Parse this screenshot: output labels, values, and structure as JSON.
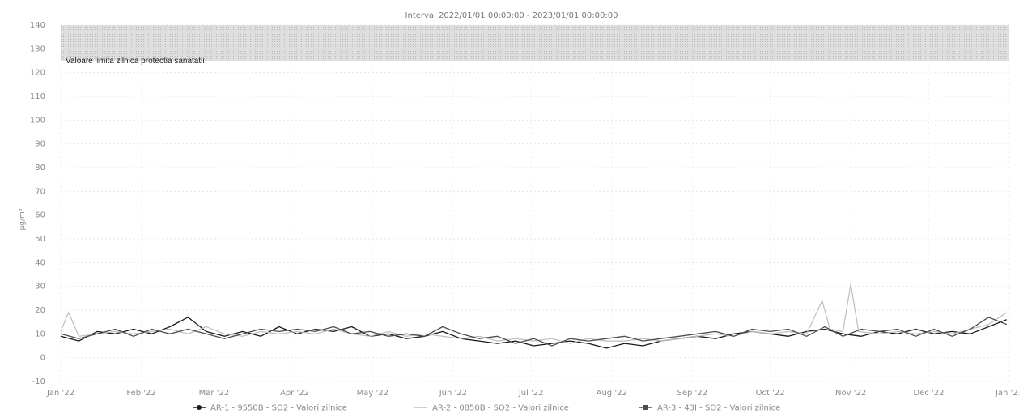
{
  "chart_data": {
    "type": "line",
    "title": "Interval 2022/01/01 00:00:00 - 2023/01/01 00:00:00",
    "ylabel": "µg/m³",
    "ylim": [
      -10,
      140
    ],
    "yticks": [
      -10,
      0,
      10,
      20,
      30,
      40,
      50,
      60,
      70,
      80,
      90,
      100,
      110,
      120,
      130,
      140
    ],
    "xlim": [
      "2022-01-01",
      "2023-01-01"
    ],
    "xticks": [
      {
        "label": "Jan '22",
        "date": "2022-01-01"
      },
      {
        "label": "Feb '22",
        "date": "2022-02-01"
      },
      {
        "label": "Mar '22",
        "date": "2022-03-01"
      },
      {
        "label": "Apr '22",
        "date": "2022-04-01"
      },
      {
        "label": "May '22",
        "date": "2022-05-01"
      },
      {
        "label": "Jun '22",
        "date": "2022-06-01"
      },
      {
        "label": "Jul '22",
        "date": "2022-07-01"
      },
      {
        "label": "Aug '22",
        "date": "2022-08-01"
      },
      {
        "label": "Sep '22",
        "date": "2022-09-01"
      },
      {
        "label": "Oct '22",
        "date": "2022-10-01"
      },
      {
        "label": "Nov '22",
        "date": "2022-11-01"
      },
      {
        "label": "Dec '22",
        "date": "2022-12-01"
      },
      {
        "label": "Jan '23",
        "date": "2023-01-01"
      }
    ],
    "grid": true,
    "legend_position": "bottom",
    "threshold_band": {
      "label": "Valoare limita zilnica protectia sanatatii",
      "from": 125,
      "to": 140
    },
    "series": [
      {
        "name": "AR-1 - 9550B - SO2 - Valori zilnice",
        "color": "#1a1a1a",
        "marker": "circle",
        "points": [
          [
            "2022-01-01",
            9
          ],
          [
            "2022-01-08",
            7
          ],
          [
            "2022-01-15",
            11
          ],
          [
            "2022-01-22",
            10
          ],
          [
            "2022-01-29",
            12
          ],
          [
            "2022-02-05",
            10
          ],
          [
            "2022-02-12",
            13
          ],
          [
            "2022-02-19",
            17
          ],
          [
            "2022-02-26",
            11
          ],
          [
            "2022-03-05",
            9
          ],
          [
            "2022-03-12",
            11
          ],
          [
            "2022-03-19",
            9
          ],
          [
            "2022-03-26",
            13
          ],
          [
            "2022-04-02",
            10
          ],
          [
            "2022-04-09",
            12
          ],
          [
            "2022-04-16",
            11
          ],
          [
            "2022-04-23",
            13
          ],
          [
            "2022-04-30",
            9
          ],
          [
            "2022-05-07",
            10
          ],
          [
            "2022-05-14",
            8
          ],
          [
            "2022-05-21",
            9
          ],
          [
            "2022-05-28",
            11
          ],
          [
            "2022-06-04",
            8
          ],
          [
            "2022-06-11",
            7
          ],
          [
            "2022-06-18",
            6
          ],
          [
            "2022-06-25",
            7
          ],
          [
            "2022-07-02",
            5
          ],
          [
            "2022-07-09",
            6
          ],
          [
            "2022-07-16",
            7
          ],
          [
            "2022-07-23",
            6
          ],
          [
            "2022-07-30",
            4
          ],
          [
            "2022-08-06",
            6
          ],
          [
            "2022-08-13",
            5
          ],
          [
            "2022-08-20",
            7
          ],
          [
            "2022-08-27",
            8
          ],
          [
            "2022-09-03",
            9
          ],
          [
            "2022-09-10",
            8
          ],
          [
            "2022-09-17",
            10
          ],
          [
            "2022-09-24",
            11
          ],
          [
            "2022-10-01",
            10
          ],
          [
            "2022-10-08",
            9
          ],
          [
            "2022-10-15",
            11
          ],
          [
            "2022-10-22",
            12
          ],
          [
            "2022-10-29",
            10
          ],
          [
            "2022-11-05",
            9
          ],
          [
            "2022-11-12",
            11
          ],
          [
            "2022-11-19",
            10
          ],
          [
            "2022-11-26",
            12
          ],
          [
            "2022-12-03",
            10
          ],
          [
            "2022-12-10",
            11
          ],
          [
            "2022-12-17",
            10
          ],
          [
            "2022-12-24",
            13
          ],
          [
            "2022-12-31",
            16
          ]
        ]
      },
      {
        "name": "AR-2 - 0850B - SO2 - Valori zilnice",
        "color": "#bdbdbd",
        "marker": "none",
        "points": [
          [
            "2022-01-01",
            11
          ],
          [
            "2022-01-04",
            19
          ],
          [
            "2022-01-08",
            9
          ],
          [
            "2022-01-15",
            10
          ],
          [
            "2022-01-22",
            11
          ],
          [
            "2022-01-29",
            10
          ],
          [
            "2022-02-05",
            11
          ],
          [
            "2022-02-12",
            12
          ],
          [
            "2022-02-19",
            10
          ],
          [
            "2022-02-26",
            13
          ],
          [
            "2022-03-05",
            10
          ],
          [
            "2022-03-12",
            9
          ],
          [
            "2022-03-19",
            11
          ],
          [
            "2022-03-26",
            10
          ],
          [
            "2022-04-02",
            11
          ],
          [
            "2022-04-09",
            10
          ],
          [
            "2022-04-16",
            12
          ],
          [
            "2022-04-23",
            10
          ],
          [
            "2022-04-30",
            9
          ],
          [
            "2022-05-07",
            11
          ],
          [
            "2022-05-14",
            9
          ],
          [
            "2022-05-21",
            10
          ],
          [
            "2022-05-28",
            9
          ],
          [
            "2022-06-04",
            8
          ],
          [
            "2022-06-11",
            9
          ],
          [
            "2022-06-18",
            7
          ],
          [
            "2022-06-25",
            8
          ],
          [
            "2022-07-02",
            7
          ],
          [
            "2022-07-09",
            8
          ],
          [
            "2022-07-16",
            6
          ],
          [
            "2022-07-23",
            8
          ],
          [
            "2022-07-30",
            7
          ],
          [
            "2022-08-06",
            7
          ],
          [
            "2022-08-13",
            8
          ],
          [
            "2022-08-20",
            7
          ],
          [
            "2022-08-27",
            8
          ],
          [
            "2022-09-03",
            9
          ],
          [
            "2022-09-10",
            10
          ],
          [
            "2022-09-17",
            9
          ],
          [
            "2022-09-24",
            11
          ],
          [
            "2022-10-01",
            10
          ],
          [
            "2022-10-08",
            11
          ],
          [
            "2022-10-15",
            10
          ],
          [
            "2022-10-21",
            24
          ],
          [
            "2022-10-24",
            12
          ],
          [
            "2022-10-29",
            11
          ],
          [
            "2022-11-01",
            31
          ],
          [
            "2022-11-04",
            11
          ],
          [
            "2022-11-12",
            10
          ],
          [
            "2022-11-19",
            11
          ],
          [
            "2022-11-26",
            10
          ],
          [
            "2022-12-03",
            11
          ],
          [
            "2022-12-10",
            10
          ],
          [
            "2022-12-17",
            12
          ],
          [
            "2022-12-24",
            14
          ],
          [
            "2022-12-31",
            19
          ]
        ]
      },
      {
        "name": "AR-3 - 43I - SO2 - Valori zilnice",
        "color": "#4d4d4d",
        "marker": "square",
        "points": [
          [
            "2022-01-01",
            10
          ],
          [
            "2022-01-08",
            8
          ],
          [
            "2022-01-15",
            10
          ],
          [
            "2022-01-22",
            12
          ],
          [
            "2022-01-29",
            9
          ],
          [
            "2022-02-05",
            12
          ],
          [
            "2022-02-12",
            10
          ],
          [
            "2022-02-19",
            12
          ],
          [
            "2022-02-26",
            10
          ],
          [
            "2022-03-05",
            8
          ],
          [
            "2022-03-12",
            10
          ],
          [
            "2022-03-19",
            12
          ],
          [
            "2022-03-26",
            11
          ],
          [
            "2022-04-02",
            12
          ],
          [
            "2022-04-09",
            11
          ],
          [
            "2022-04-16",
            13
          ],
          [
            "2022-04-23",
            10
          ],
          [
            "2022-04-30",
            11
          ],
          [
            "2022-05-07",
            9
          ],
          [
            "2022-05-14",
            10
          ],
          [
            "2022-05-21",
            9
          ],
          [
            "2022-05-28",
            13
          ],
          [
            "2022-06-04",
            10
          ],
          [
            "2022-06-11",
            8
          ],
          [
            "2022-06-18",
            9
          ],
          [
            "2022-06-25",
            6
          ],
          [
            "2022-07-02",
            8
          ],
          [
            "2022-07-09",
            5
          ],
          [
            "2022-07-16",
            8
          ],
          [
            "2022-07-23",
            7
          ],
          [
            "2022-07-30",
            8
          ],
          [
            "2022-08-06",
            9
          ],
          [
            "2022-08-13",
            7
          ],
          [
            "2022-08-20",
            8
          ],
          [
            "2022-08-27",
            9
          ],
          [
            "2022-09-03",
            10
          ],
          [
            "2022-09-10",
            11
          ],
          [
            "2022-09-17",
            9
          ],
          [
            "2022-09-24",
            12
          ],
          [
            "2022-10-01",
            11
          ],
          [
            "2022-10-08",
            12
          ],
          [
            "2022-10-15",
            9
          ],
          [
            "2022-10-22",
            13
          ],
          [
            "2022-10-29",
            9
          ],
          [
            "2022-11-05",
            12
          ],
          [
            "2022-11-12",
            11
          ],
          [
            "2022-11-19",
            12
          ],
          [
            "2022-11-26",
            9
          ],
          [
            "2022-12-03",
            12
          ],
          [
            "2022-12-10",
            9
          ],
          [
            "2022-12-17",
            12
          ],
          [
            "2022-12-24",
            17
          ],
          [
            "2022-12-31",
            14
          ]
        ]
      }
    ]
  }
}
